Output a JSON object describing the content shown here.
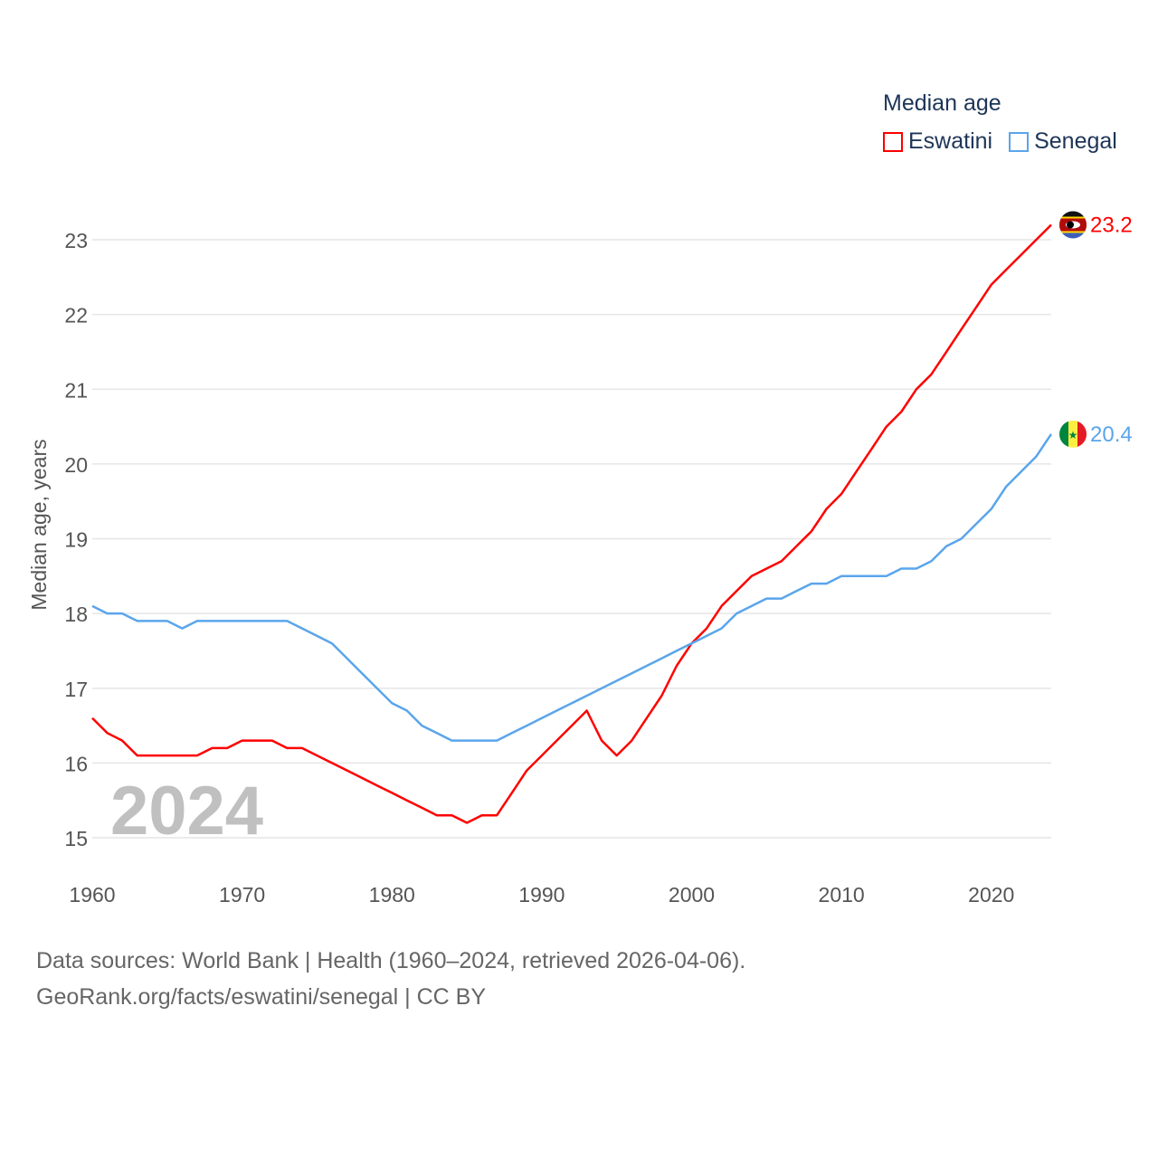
{
  "chart_data": {
    "type": "line",
    "title": "Median age",
    "ylabel": "Median age, years",
    "xlabel": "",
    "year_watermark": "2024",
    "xlim": [
      1960,
      2024
    ],
    "ylim": [
      15,
      23
    ],
    "x_ticks": [
      "1960",
      "1970",
      "1980",
      "1990",
      "2000",
      "2010",
      "2020"
    ],
    "y_ticks": [
      "15",
      "16",
      "17",
      "18",
      "19",
      "20",
      "21",
      "22",
      "23"
    ],
    "grid": true,
    "legend_position": "top-right",
    "x_start": 1960,
    "series": [
      {
        "name": "Eswatini",
        "color": "#ff0000",
        "end_label": "23.2",
        "values": [
          16.6,
          16.4,
          16.3,
          16.1,
          16.1,
          16.1,
          16.1,
          16.1,
          16.2,
          16.2,
          16.3,
          16.3,
          16.3,
          16.2,
          16.2,
          16.1,
          16.0,
          15.9,
          15.8,
          15.7,
          15.6,
          15.5,
          15.4,
          15.3,
          15.3,
          15.2,
          15.3,
          15.3,
          15.6,
          15.9,
          16.1,
          16.3,
          16.5,
          16.7,
          16.3,
          16.1,
          16.3,
          16.6,
          16.9,
          17.3,
          17.6,
          17.8,
          18.1,
          18.3,
          18.5,
          18.6,
          18.7,
          18.9,
          19.1,
          19.4,
          19.6,
          19.9,
          20.2,
          20.5,
          20.7,
          21.0,
          21.2,
          21.5,
          21.8,
          22.1,
          22.4,
          22.6,
          22.8,
          23.0,
          23.2
        ]
      },
      {
        "name": "Senegal",
        "color": "#5aa5ec",
        "end_label": "20.4",
        "values": [
          18.1,
          18.0,
          18.0,
          17.9,
          17.9,
          17.9,
          17.8,
          17.9,
          17.9,
          17.9,
          17.9,
          17.9,
          17.9,
          17.9,
          17.8,
          17.7,
          17.6,
          17.4,
          17.2,
          17.0,
          16.8,
          16.7,
          16.5,
          16.4,
          16.3,
          16.3,
          16.3,
          16.3,
          16.4,
          16.5,
          16.6,
          16.7,
          16.8,
          16.9,
          17.0,
          17.1,
          17.2,
          17.3,
          17.4,
          17.5,
          17.6,
          17.7,
          17.8,
          18.0,
          18.1,
          18.2,
          18.2,
          18.3,
          18.4,
          18.4,
          18.5,
          18.5,
          18.5,
          18.5,
          18.6,
          18.6,
          18.7,
          18.9,
          19.0,
          19.2,
          19.4,
          19.7,
          19.9,
          20.1,
          20.4
        ]
      }
    ]
  },
  "footer": {
    "line1": "Data sources: World Bank | Health (1960–2024, retrieved 2026-04-06).",
    "line2": "GeoRank.org/facts/eswatini/senegal | CC BY"
  }
}
